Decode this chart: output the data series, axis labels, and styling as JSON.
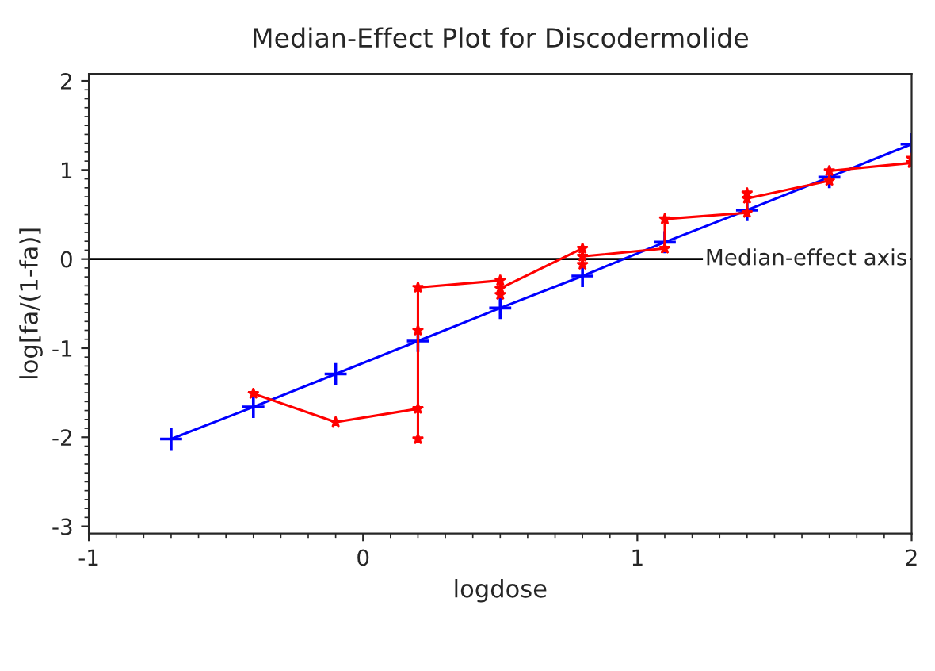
{
  "chart_data": {
    "type": "line",
    "title": "Median-Effect Plot for Discodermolide",
    "xlabel": "logdose",
    "ylabel": "log[fa/(1-fa)]",
    "xlim": [
      -1,
      2
    ],
    "xticks": [
      -1,
      0,
      1,
      2
    ],
    "ylim": [
      -3.08,
      2.08
    ],
    "yticks": [
      -3,
      -2,
      -1,
      0,
      1,
      2
    ],
    "grid": false,
    "legend": false,
    "line_style": "solid",
    "series": [
      {
        "color": "#ff0000",
        "marker": "star",
        "x": [
          -0.4,
          -0.1,
          0.2,
          0.2,
          0.2,
          0.2,
          0.5,
          0.5,
          0.5,
          0.8,
          0.8,
          0.8,
          1.1,
          1.1,
          1.4,
          1.4,
          1.4,
          1.7,
          1.7,
          2.0,
          2.0
        ],
        "values": [
          -1.51,
          -1.83,
          -1.68,
          -2.02,
          -0.8,
          -0.32,
          -0.24,
          -0.4,
          -0.33,
          0.12,
          -0.06,
          0.03,
          0.12,
          0.45,
          0.52,
          0.74,
          0.68,
          0.88,
          0.99,
          1.08,
          1.13
        ]
      },
      {
        "color": "#0000ff",
        "marker": "cross",
        "x": [
          -0.7,
          -0.4,
          -0.1,
          0.2,
          0.5,
          0.8,
          1.1,
          1.4,
          1.7,
          2.0
        ],
        "values": [
          -2.02,
          -1.66,
          -1.29,
          -0.92,
          -0.55,
          -0.19,
          0.19,
          0.55,
          0.92,
          1.29
        ]
      }
    ],
    "ref_lines": [
      {
        "axis": "y",
        "value": 0,
        "label": "Median-effect axis",
        "color": "#000000"
      }
    ]
  }
}
